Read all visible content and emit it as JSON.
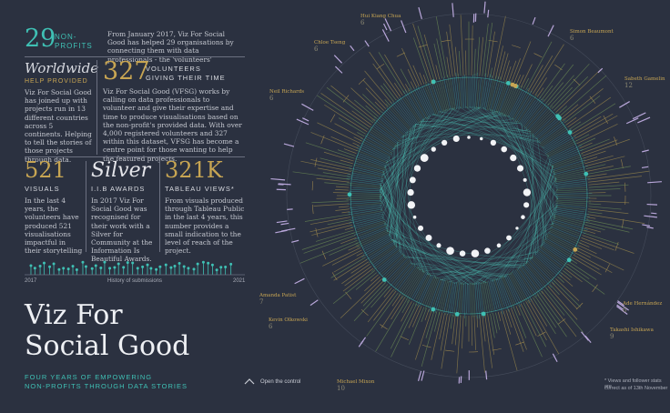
{
  "stats": {
    "nonprofits": {
      "number": "29",
      "label_line1": "NON-",
      "label_line2": "PROFITS",
      "text": "From January 2017, Viz For Social Good has helped 29 organisations by connecting them with data professionals - the 'volunteers'"
    },
    "worldwide": {
      "title": "Worldwide",
      "subtitle": "HELP PROVIDED",
      "text": "Viz For Social Good has joined up with projects run in 13 different countries across 5 continents. Helping to tell the stories of those projects through data."
    },
    "volunteers": {
      "number": "327",
      "label_line1": "VOLUNTEERS",
      "label_line2": "GIVING THEIR TIME",
      "text": "Viz For Social Good (VFSG) works by calling on data professionals to volunteer and give their expertise and time to produce visualisations based on the non-profit's provided data. With over 4,000 registered volunteers and 327 within this dataset, VFSG has become a centre point for those wanting to help the featured projects."
    },
    "visuals": {
      "number": "521",
      "label": "VISUALS",
      "text": "In the last 4 years, the volunteers have produced 521 visualisations impactful in their storytelling"
    },
    "silver": {
      "title": "Silver",
      "label": "I.I.B AWARDS",
      "text": "In 2017 Viz For Social Good was recognised for their work with a Silver for Community at the Information Is Beautiful Awards."
    },
    "views": {
      "number": "321K",
      "label": "TABLEAU VIEWS*",
      "text": "From visuals produced through Tableau Public in the last 4 years, this number provides a small indication to the level of reach of the project."
    }
  },
  "timeline": {
    "start": "2017",
    "end": "2021",
    "caption": "History of submissions"
  },
  "title": {
    "line1": "Viz For",
    "line2": "Social Good",
    "tag1": "FOUR YEARS OF EMPOWERING",
    "tag2": "NON-PROFITS THROUGH DATA STORIES"
  },
  "control": {
    "label": "Open the control"
  },
  "footnote": {
    "line1": "* Views and follower stats are",
    "line2": "correct as of 13th November"
  },
  "volunteer_labels": [
    {
      "name": "Hui Kiang Chua",
      "count": "6"
    },
    {
      "name": "Simon Beaumont",
      "count": "6"
    },
    {
      "name": "Chloe Tseng",
      "count": "6"
    },
    {
      "name": "Neil Richards",
      "count": "6"
    },
    {
      "name": "Sabeth Gamelin",
      "count": "12"
    },
    {
      "name": "Amanda Patist",
      "count": "7"
    },
    {
      "name": "Kevin Olkowski",
      "count": "6"
    },
    {
      "name": "Ade Hernández",
      "count": "6"
    },
    {
      "name": "Takashi Ishikawa",
      "count": "9"
    },
    {
      "name": "Michael Mixon",
      "count": "10"
    }
  ],
  "colors": {
    "background": "#2b3140",
    "teal": "#3fc0b4",
    "gold": "#c7a553",
    "lavender": "#b8a6d9"
  }
}
